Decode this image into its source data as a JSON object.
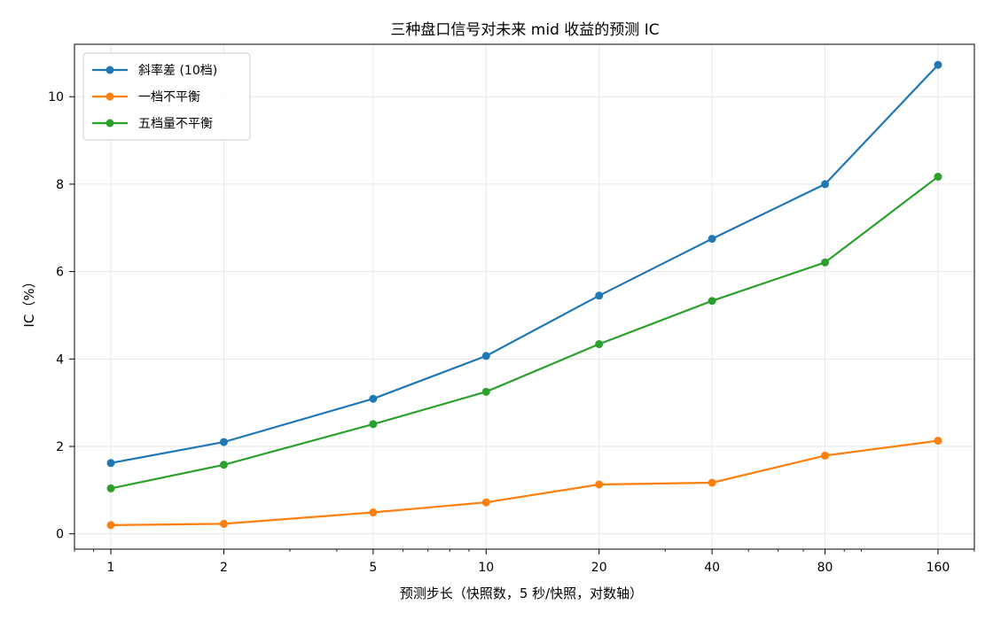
{
  "chart_data": {
    "type": "line",
    "title": "三种盘口信号对未来 mid 收益的预测 IC",
    "xlabel": "预测步长（快照数，5 秒/快照，对数轴）",
    "ylabel": "IC（%）",
    "x_scale": "log",
    "x": [
      1,
      2,
      5,
      10,
      20,
      40,
      80,
      160
    ],
    "x_tick_labels": [
      "1",
      "2",
      "5",
      "10",
      "20",
      "40",
      "80",
      "160"
    ],
    "xlim": [
      0.8,
      200
    ],
    "ylim": [
      -0.35,
      11.2
    ],
    "y_ticks": [
      0,
      2,
      4,
      6,
      8,
      10
    ],
    "y_tick_labels": [
      "0",
      "2",
      "4",
      "6",
      "8",
      "10"
    ],
    "grid": true,
    "legend_position": "top-left",
    "series": [
      {
        "name": "斜率差 (10档)",
        "color": "#1f77b4",
        "values": [
          1.62,
          2.1,
          3.09,
          4.07,
          5.45,
          6.75,
          8.0,
          10.73
        ]
      },
      {
        "name": "一档不平衡",
        "color": "#ff7f0e",
        "values": [
          0.2,
          0.23,
          0.49,
          0.72,
          1.13,
          1.17,
          1.79,
          2.13
        ]
      },
      {
        "name": "五档量不平衡",
        "color": "#2ca02c",
        "values": [
          1.04,
          1.58,
          2.51,
          3.25,
          4.34,
          5.33,
          6.21,
          8.17
        ]
      }
    ]
  }
}
